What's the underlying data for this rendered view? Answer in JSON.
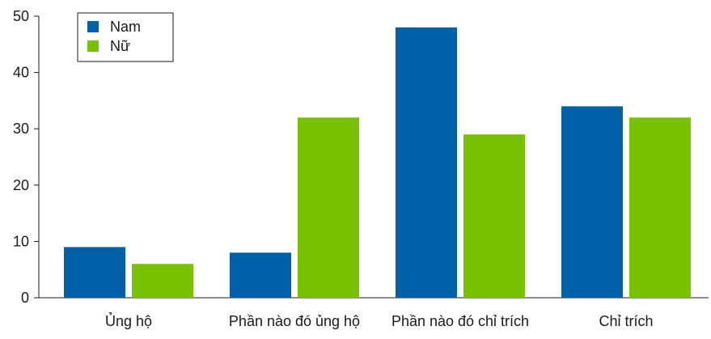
{
  "chart_data": {
    "type": "bar",
    "categories": [
      "Ủng hộ",
      "Phần nào đó ủng hộ",
      "Phần nào đó chỉ trích",
      "Chỉ trích"
    ],
    "series": [
      {
        "name": "Nam",
        "values": [
          9,
          8,
          48,
          34
        ],
        "color": "#0060a8"
      },
      {
        "name": "Nữ",
        "values": [
          6,
          32,
          29,
          32
        ],
        "color": "#79c200"
      }
    ],
    "ylim": [
      0,
      50
    ],
    "yticks": [
      0,
      10,
      20,
      30,
      40,
      50
    ],
    "title": "",
    "xlabel": "",
    "ylabel": "",
    "legend_position": "top-left",
    "grid": false
  }
}
